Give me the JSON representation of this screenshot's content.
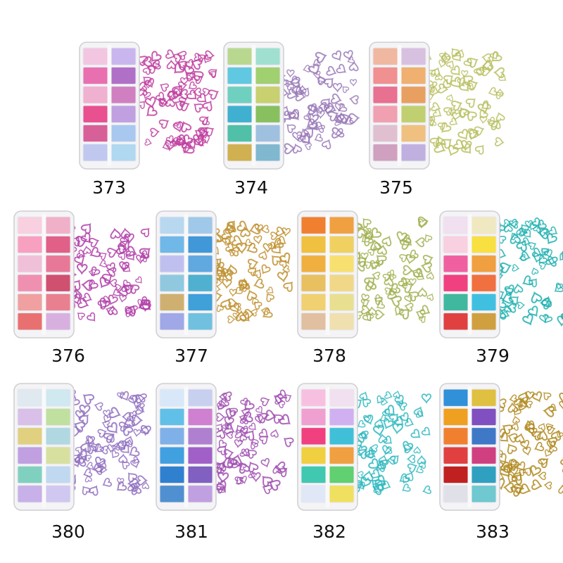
{
  "items": [
    {
      "label": "373"
    },
    {
      "label": "374"
    },
    {
      "label": "375"
    },
    {
      "label": "376"
    },
    {
      "label": "377"
    },
    {
      "label": "378"
    },
    {
      "label": "379"
    },
    {
      "label": "380"
    },
    {
      "label": "381"
    },
    {
      "label": "382"
    },
    {
      "label": "383"
    }
  ]
}
